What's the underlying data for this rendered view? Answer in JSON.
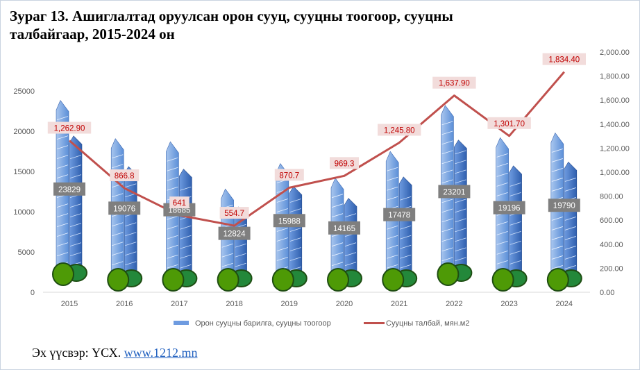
{
  "title_line1": "Зураг 13. Ашиглалтад оруулсан орон сууц, сууцны тоогоор, сууцны",
  "title_line2": "талбайгаар, 2015-2024 он",
  "source": {
    "label": "Эх үүсвэр: ҮСХ.",
    "link": "www.1212.mn"
  },
  "colors": {
    "bar": "#4a7fcf",
    "line": "#c0504d",
    "label_bg": "#f2dcdb",
    "value_box": "#7f7f7f",
    "tree": "#4e9a06"
  },
  "chart_data": {
    "type": "bar+line",
    "categories": [
      "2015",
      "2016",
      "2017",
      "2018",
      "2019",
      "2020",
      "2021",
      "2022",
      "2023",
      "2024"
    ],
    "series": [
      {
        "name": "Орон сууцны барилга, сууцны тоогоор",
        "type": "bar",
        "axis": "left",
        "values": [
          23829,
          19076,
          18685,
          12824,
          15988,
          14165,
          17478,
          23201,
          19196,
          19790
        ],
        "labels": [
          "23829",
          "19076",
          "18685",
          "12824",
          "15988",
          "14165",
          "17478",
          "23201",
          "19196",
          "19790"
        ]
      },
      {
        "name": "Сууцны талбай, мян.м2",
        "type": "line",
        "axis": "right",
        "values": [
          1262.9,
          866.8,
          641,
          554.7,
          870.7,
          969.3,
          1245.8,
          1637.9,
          1301.7,
          1834.4
        ],
        "labels": [
          "1,262.90",
          "866.8",
          "641",
          "554.7",
          "870.7",
          "969.3",
          "1,245.80",
          "1,637.90",
          "1,301.70",
          "1,834.40"
        ]
      }
    ],
    "left_axis": {
      "range": [
        0,
        25000
      ],
      "ticks": [
        "0",
        "5000",
        "10000",
        "15000",
        "20000",
        "25000"
      ]
    },
    "right_axis": {
      "range": [
        0,
        2000
      ],
      "ticks": [
        "0.00",
        "200.00",
        "400.00",
        "600.00",
        "800.00",
        "1,000.00",
        "1,200.00",
        "1,400.00",
        "1,600.00",
        "1,800.00",
        "2,000.00"
      ]
    },
    "legend": "bottom",
    "grid": false
  }
}
